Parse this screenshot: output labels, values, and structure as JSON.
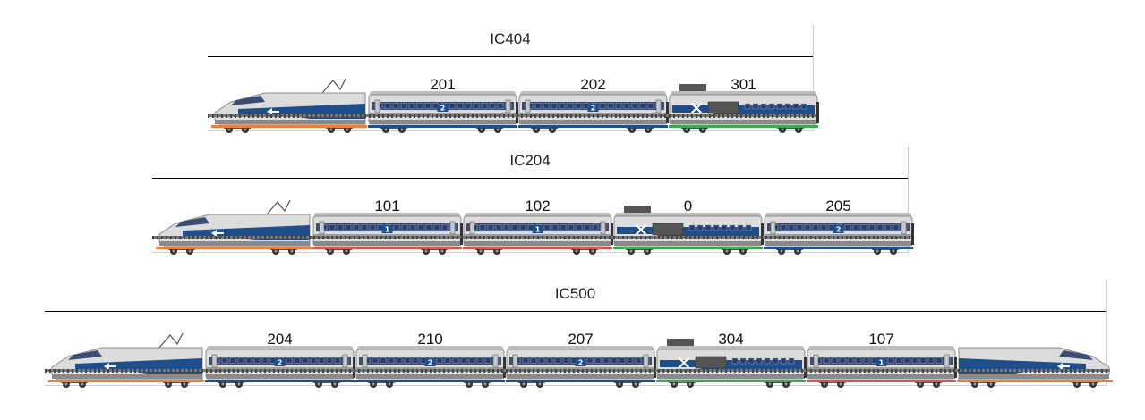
{
  "trains": [
    {
      "title": "IC404",
      "cars": [
        {
          "kind": "loco",
          "label": "",
          "class": "",
          "color": "#ef7d3c"
        },
        {
          "kind": "coach",
          "label": "201",
          "class": "2",
          "color": "#1f4e8c"
        },
        {
          "kind": "coach",
          "label": "202",
          "class": "2",
          "color": "#1f4e8c"
        },
        {
          "kind": "dining",
          "label": "301",
          "class": "",
          "color": "#3daa52"
        }
      ]
    },
    {
      "title": "IC204",
      "cars": [
        {
          "kind": "loco",
          "label": "",
          "class": "",
          "color": "#ef7d3c"
        },
        {
          "kind": "coach",
          "label": "101",
          "class": "1",
          "color": "#d9534f"
        },
        {
          "kind": "coach",
          "label": "102",
          "class": "1",
          "color": "#d9534f"
        },
        {
          "kind": "dining",
          "label": "0",
          "class": "",
          "color": "#3daa52"
        },
        {
          "kind": "coach",
          "label": "205",
          "class": "2",
          "color": "#1f4e8c"
        }
      ]
    },
    {
      "title": "IC500",
      "cars": [
        {
          "kind": "loco",
          "label": "",
          "class": "",
          "color": "#ef7d3c"
        },
        {
          "kind": "coach",
          "label": "204",
          "class": "2",
          "color": "#1f4e8c"
        },
        {
          "kind": "coach",
          "label": "210",
          "class": "2",
          "color": "#1f4e8c"
        },
        {
          "kind": "coach",
          "label": "207",
          "class": "2",
          "color": "#1f4e8c"
        },
        {
          "kind": "dining",
          "label": "304",
          "class": "",
          "color": "#3daa52"
        },
        {
          "kind": "coach",
          "label": "107",
          "class": "1",
          "color": "#d9534f"
        },
        {
          "kind": "loco-rear",
          "label": "",
          "class": "",
          "color": "#ef7d3c"
        }
      ]
    }
  ]
}
